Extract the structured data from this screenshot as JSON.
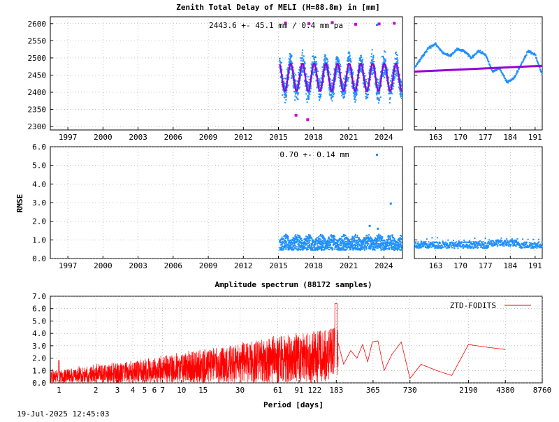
{
  "chart_data": [
    {
      "type": "scatter",
      "title": "Zenith Total Delay of MELI (H=88.8m) in [mm]",
      "annotation": "2443.6 +-  45.1 mm /  0.4 mm pa",
      "ylim": [
        2290,
        2620
      ],
      "yticks": [
        "2300",
        "2350",
        "2400",
        "2450",
        "2500",
        "2550",
        "2600"
      ],
      "yticks_values": [
        2300,
        2350,
        2400,
        2450,
        2500,
        2550,
        2600
      ],
      "xlim": [
        1995.5,
        2025.6
      ],
      "xticks": [
        "1997",
        "2000",
        "2003",
        "2006",
        "2009",
        "2012",
        "2015",
        "2018",
        "2021",
        "2024"
      ],
      "xticks_values": [
        1997,
        2000,
        2003,
        2006,
        2009,
        2012,
        2015,
        2018,
        2021,
        2024
      ],
      "data_start": 2015.1,
      "data_end": 2025.55,
      "mean": 2443.6,
      "seasonal_amplitude": 40,
      "spread": 55,
      "outliers": [
        {
          "x": 2015.6,
          "y": 2602
        },
        {
          "x": 2017.6,
          "y": 2600
        },
        {
          "x": 2019.6,
          "y": 2603
        },
        {
          "x": 2021.6,
          "y": 2598
        },
        {
          "x": 2023.6,
          "y": 2599
        },
        {
          "x": 2024.9,
          "y": 2601
        },
        {
          "x": 2016.5,
          "y": 2333
        },
        {
          "x": 2017.5,
          "y": 2320
        }
      ],
      "grid": true,
      "colors": {
        "points": "#1e90ff",
        "model": "#9400d3",
        "outliers": "#cc00cc"
      }
    },
    {
      "type": "scatter",
      "title": "",
      "xlim": [
        157,
        193
      ],
      "xticks": [
        "163",
        "170",
        "177",
        "184",
        "191"
      ],
      "xticks_values": [
        163,
        170,
        177,
        184,
        191
      ],
      "ylim": [
        2290,
        2620
      ],
      "trend": {
        "start": 2460,
        "end": 2477
      },
      "profile_x": [
        157,
        159,
        161,
        163,
        165,
        167,
        169,
        171,
        173,
        175,
        177,
        179,
        181,
        183,
        185,
        187,
        189,
        191,
        193
      ],
      "profile_y": [
        2472,
        2500,
        2530,
        2540,
        2515,
        2505,
        2525,
        2520,
        2500,
        2520,
        2510,
        2460,
        2470,
        2430,
        2440,
        2480,
        2520,
        2510,
        2450
      ],
      "grid": true
    },
    {
      "type": "scatter",
      "title": "",
      "annotation": "0.70 +-  0.14 mm",
      "ylabel": "RMSE",
      "ylim": [
        0,
        6
      ],
      "yticks": [
        "0.0",
        "1.0",
        "2.0",
        "3.0",
        "4.0",
        "5.0",
        "6.0"
      ],
      "yticks_values": [
        0,
        1,
        2,
        3,
        4,
        5,
        6
      ],
      "xlim": [
        1995.5,
        2025.6
      ],
      "xticks": [
        "1997",
        "2000",
        "2003",
        "2006",
        "2009",
        "2012",
        "2015",
        "2018",
        "2021",
        "2024"
      ],
      "xticks_values": [
        1997,
        2000,
        2003,
        2006,
        2009,
        2012,
        2015,
        2018,
        2021,
        2024
      ],
      "data_start": 2015.1,
      "data_end": 2025.55,
      "mean": 0.7,
      "outliers": [
        {
          "x": 2024.6,
          "y": 2.95
        },
        {
          "x": 2022.8,
          "y": 1.75
        },
        {
          "x": 2023.5,
          "y": 1.6
        }
      ],
      "grid": true
    },
    {
      "type": "scatter",
      "title": "",
      "xlim": [
        157,
        193
      ],
      "xticks": [
        "163",
        "170",
        "177",
        "184",
        "191"
      ],
      "xticks_values": [
        163,
        170,
        177,
        184,
        191
      ],
      "ylim": [
        0,
        6
      ],
      "mean": 0.75,
      "grid": true
    },
    {
      "type": "line",
      "title": "Amplitude spectrum (88172 samples)",
      "xlabel": "Period [days]",
      "xscale": "log",
      "xlim": [
        0.85,
        8760
      ],
      "xticks": [
        "1",
        "2",
        "3",
        "4",
        "5",
        "6",
        "7",
        "10",
        "15",
        "30",
        "61",
        "91",
        "122",
        "183",
        "365",
        "730",
        "2190",
        "4380",
        "8760"
      ],
      "xticks_values": [
        1,
        2,
        3,
        4,
        5,
        6,
        7,
        10,
        15,
        30,
        61,
        91,
        122,
        183,
        365,
        730,
        2190,
        4380,
        8760
      ],
      "ylim": [
        0,
        7
      ],
      "yticks": [
        "0.0",
        "1.0",
        "2.0",
        "3.0",
        "4.0",
        "5.0",
        "6.0",
        "7.0"
      ],
      "yticks_values": [
        0,
        1,
        2,
        3,
        4,
        5,
        6,
        7
      ],
      "legend": "ZTD-FODITS",
      "legend_placement": "top-right",
      "grid": true,
      "peaks": [
        {
          "x": 1.0,
          "y": 1.8
        },
        {
          "x": 183,
          "y": 6.4
        },
        {
          "x": 365,
          "y": 3.4
        }
      ],
      "tail_x": [
        190,
        210,
        240,
        270,
        300,
        330,
        360,
        400,
        450,
        520,
        620,
        730,
        900,
        1200,
        1600,
        2190,
        3000,
        4380
      ],
      "tail_y": [
        3.2,
        1.5,
        2.6,
        2.0,
        3.1,
        1.7,
        3.3,
        3.4,
        1.0,
        2.3,
        3.3,
        0.35,
        1.5,
        1.0,
        0.6,
        3.1,
        2.9,
        2.7
      ],
      "colors": {
        "line": "#ff0000"
      }
    }
  ],
  "footer": {
    "timestamp": "19-Jul-2025 12:45:03"
  }
}
